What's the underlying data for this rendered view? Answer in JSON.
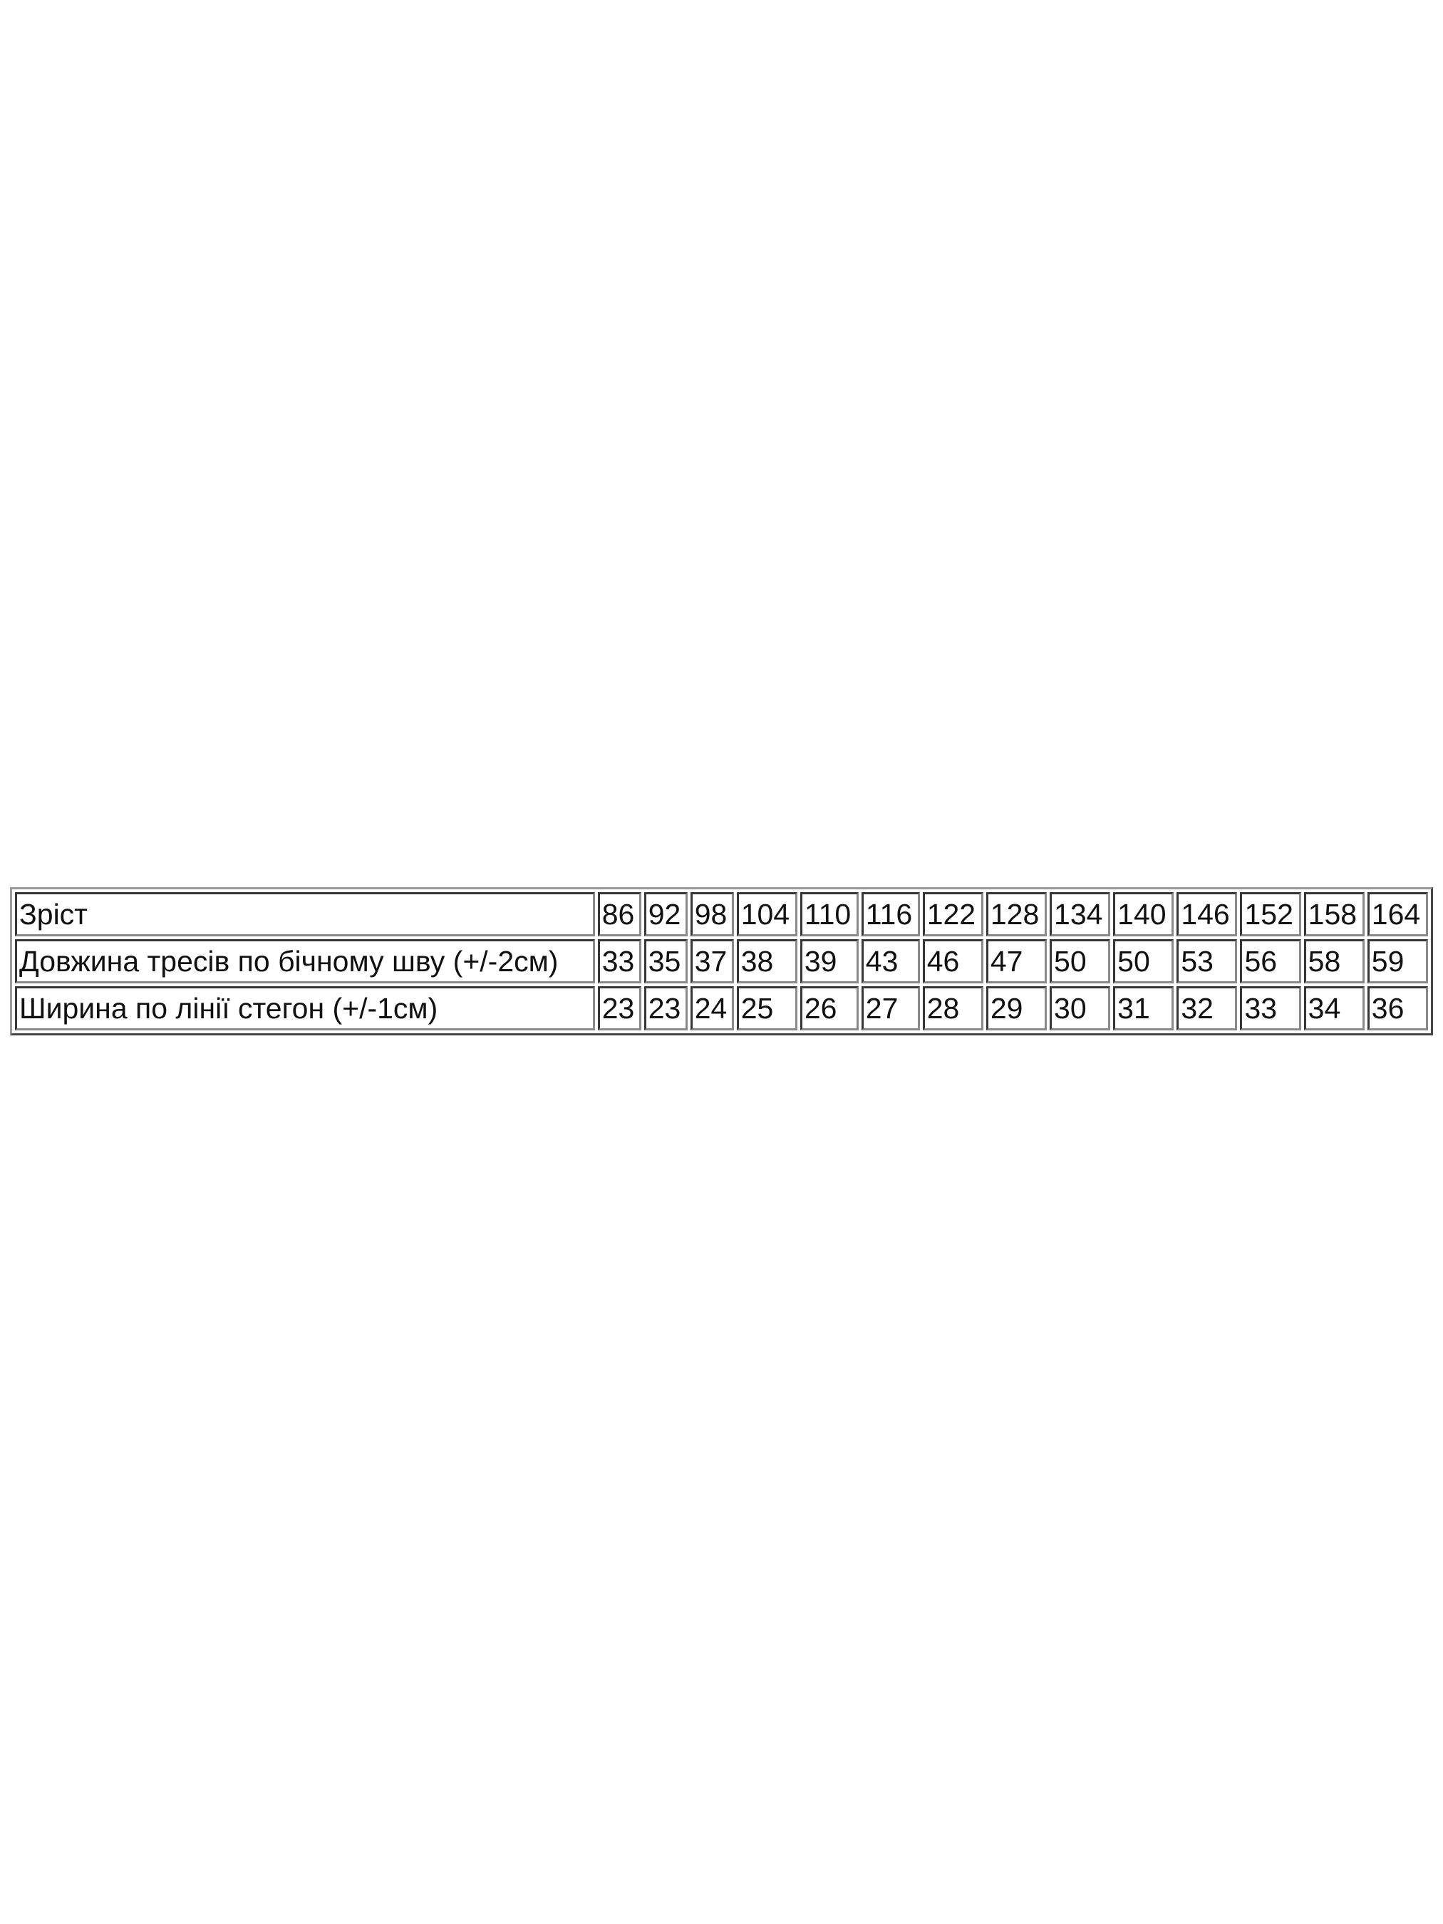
{
  "table": {
    "rows": [
      {
        "label": "Зріст",
        "values": [
          "86",
          "92",
          "98",
          "104",
          "110",
          "116",
          "122",
          "128",
          "134",
          "140",
          "146",
          "152",
          "158",
          "164"
        ]
      },
      {
        "label": "Довжина тресів по бічному шву (+/-2см)",
        "values": [
          "33",
          "35",
          "37",
          "38",
          "39",
          "43",
          "46",
          "47",
          "50",
          "50",
          "53",
          "56",
          "58",
          "59"
        ]
      },
      {
        "label": "Ширина по лінії стегон (+/-1см)",
        "values": [
          "23",
          "23",
          "24",
          "25",
          "26",
          "27",
          "28",
          "29",
          "30",
          "31",
          "32",
          "33",
          "34",
          "36"
        ]
      }
    ]
  }
}
